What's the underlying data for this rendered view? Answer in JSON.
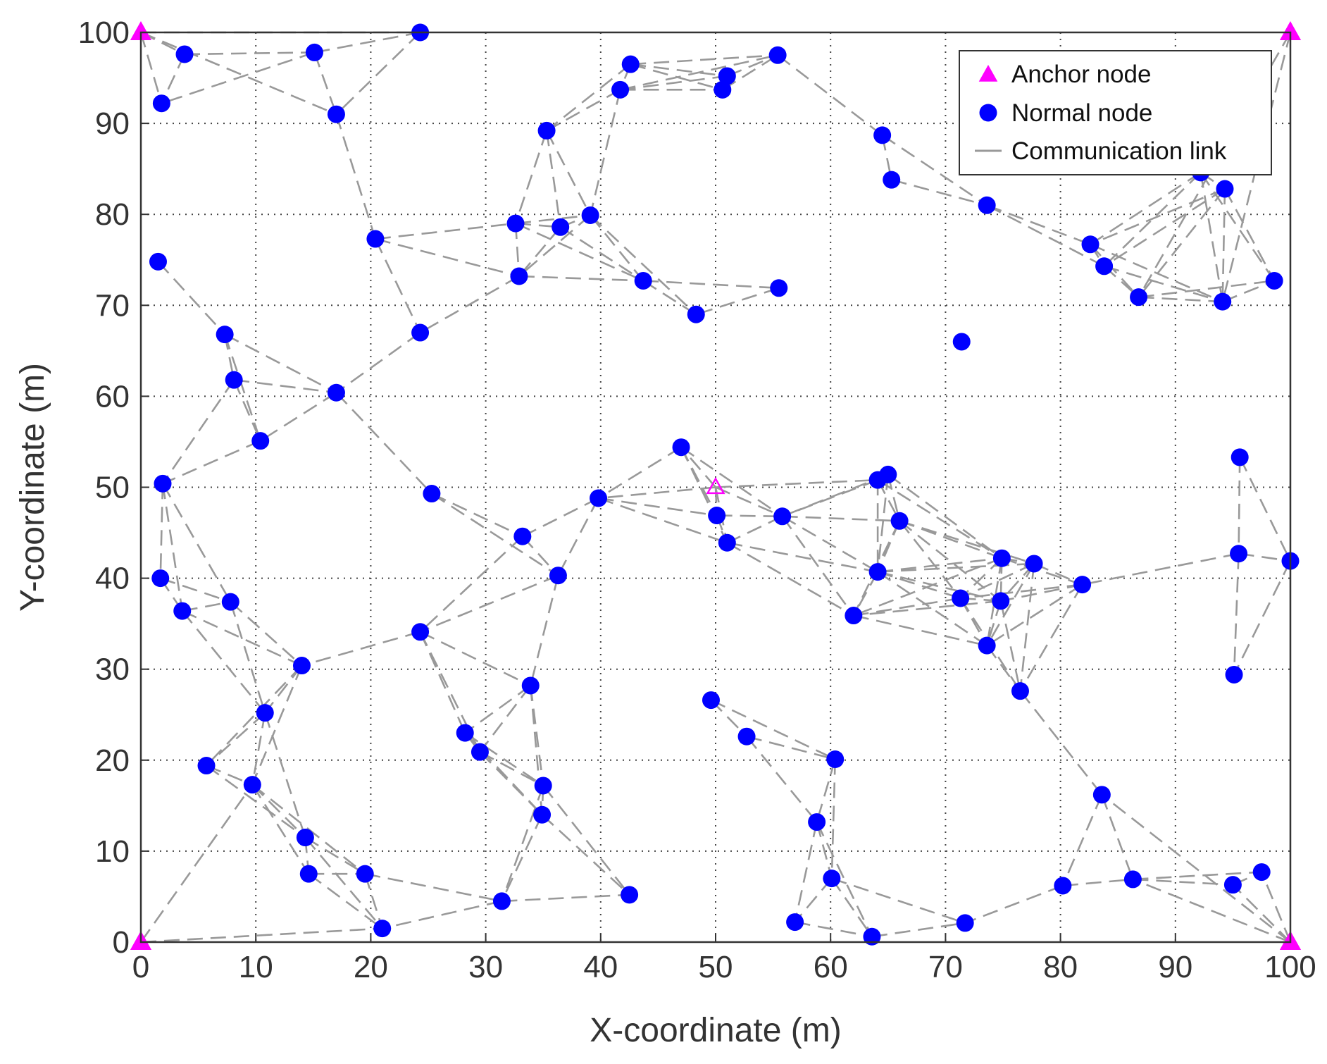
{
  "chart_data": {
    "type": "scatter",
    "xlabel": "X-coordinate (m)",
    "ylabel": "Y-coordinate (m)",
    "xlim": [
      0,
      100
    ],
    "ylim": [
      0,
      100
    ],
    "xticks": [
      "0",
      "10",
      "20",
      "30",
      "40",
      "50",
      "60",
      "70",
      "80",
      "90",
      "100"
    ],
    "yticks": [
      "0",
      "10",
      "20",
      "30",
      "40",
      "50",
      "60",
      "70",
      "80",
      "90",
      "100"
    ],
    "grid": true,
    "legend_position": "top-right",
    "legend": [
      {
        "label": "Anchor node",
        "marker": "triangle",
        "color": "#ff00ff"
      },
      {
        "label": "Normal node",
        "marker": "circle",
        "color": "#0000ff"
      },
      {
        "label": "Communication link",
        "marker": "dashed-line",
        "color": "#999999"
      }
    ],
    "colors": {
      "anchor": "#ff00ff",
      "normal": "#0000ff",
      "link": "#999999",
      "grid": "#444444"
    },
    "communication_range": 14.5,
    "anchor_nodes": [
      [
        0,
        100
      ],
      [
        100,
        100
      ],
      [
        0,
        0
      ],
      [
        100,
        0
      ],
      [
        50,
        50
      ]
    ],
    "normal_nodes": [
      [
        3.8,
        97.6
      ],
      [
        15.1,
        97.8
      ],
      [
        24.3,
        100
      ],
      [
        1.8,
        92.2
      ],
      [
        17.0,
        91.0
      ],
      [
        42.6,
        96.5
      ],
      [
        41.7,
        93.7
      ],
      [
        51.0,
        95.2
      ],
      [
        50.6,
        93.7
      ],
      [
        55.4,
        97.5
      ],
      [
        35.3,
        89.2
      ],
      [
        64.5,
        88.7
      ],
      [
        65.3,
        83.8
      ],
      [
        73.6,
        81.0
      ],
      [
        92.2,
        84.6
      ],
      [
        94.3,
        82.8
      ],
      [
        82.6,
        76.7
      ],
      [
        83.8,
        74.3
      ],
      [
        86.8,
        70.9
      ],
      [
        94.1,
        70.4
      ],
      [
        98.6,
        72.7
      ],
      [
        1.5,
        74.8
      ],
      [
        20.4,
        77.3
      ],
      [
        32.6,
        79.0
      ],
      [
        36.5,
        78.6
      ],
      [
        39.1,
        79.9
      ],
      [
        32.9,
        73.2
      ],
      [
        43.7,
        72.7
      ],
      [
        55.5,
        71.9
      ],
      [
        48.3,
        69.0
      ],
      [
        71.4,
        66.0
      ],
      [
        7.3,
        66.8
      ],
      [
        24.3,
        67.0
      ],
      [
        8.1,
        61.8
      ],
      [
        17.0,
        60.4
      ],
      [
        10.4,
        55.1
      ],
      [
        47.0,
        54.4
      ],
      [
        1.9,
        50.4
      ],
      [
        25.3,
        49.3
      ],
      [
        39.8,
        48.8
      ],
      [
        95.6,
        53.3
      ],
      [
        65.0,
        51.4
      ],
      [
        64.1,
        50.8
      ],
      [
        50.1,
        46.9
      ],
      [
        55.8,
        46.8
      ],
      [
        66.0,
        46.3
      ],
      [
        51.0,
        43.9
      ],
      [
        33.2,
        44.6
      ],
      [
        95.5,
        42.7
      ],
      [
        100.0,
        41.9
      ],
      [
        1.7,
        40.0
      ],
      [
        3.6,
        36.4
      ],
      [
        7.8,
        37.4
      ],
      [
        36.3,
        40.3
      ],
      [
        64.1,
        40.7
      ],
      [
        74.9,
        42.2
      ],
      [
        77.7,
        41.6
      ],
      [
        81.9,
        39.3
      ],
      [
        71.3,
        37.8
      ],
      [
        74.8,
        37.5
      ],
      [
        62.0,
        35.9
      ],
      [
        24.3,
        34.1
      ],
      [
        73.6,
        32.6
      ],
      [
        14.0,
        30.4
      ],
      [
        95.1,
        29.4
      ],
      [
        33.9,
        28.2
      ],
      [
        49.6,
        26.6
      ],
      [
        76.5,
        27.6
      ],
      [
        10.8,
        25.2
      ],
      [
        28.2,
        23.0
      ],
      [
        52.7,
        22.6
      ],
      [
        29.5,
        20.9
      ],
      [
        5.7,
        19.4
      ],
      [
        60.4,
        20.1
      ],
      [
        9.7,
        17.3
      ],
      [
        35.0,
        17.2
      ],
      [
        83.6,
        16.2
      ],
      [
        34.9,
        14.0
      ],
      [
        58.8,
        13.2
      ],
      [
        14.3,
        11.5
      ],
      [
        14.6,
        7.5
      ],
      [
        19.5,
        7.5
      ],
      [
        60.1,
        7.0
      ],
      [
        31.4,
        4.5
      ],
      [
        42.5,
        5.2
      ],
      [
        80.2,
        6.2
      ],
      [
        86.3,
        6.9
      ],
      [
        95.0,
        6.3
      ],
      [
        97.5,
        7.7
      ],
      [
        21.0,
        1.5
      ],
      [
        56.9,
        2.2
      ],
      [
        63.6,
        0.6
      ],
      [
        71.7,
        2.1
      ]
    ]
  }
}
